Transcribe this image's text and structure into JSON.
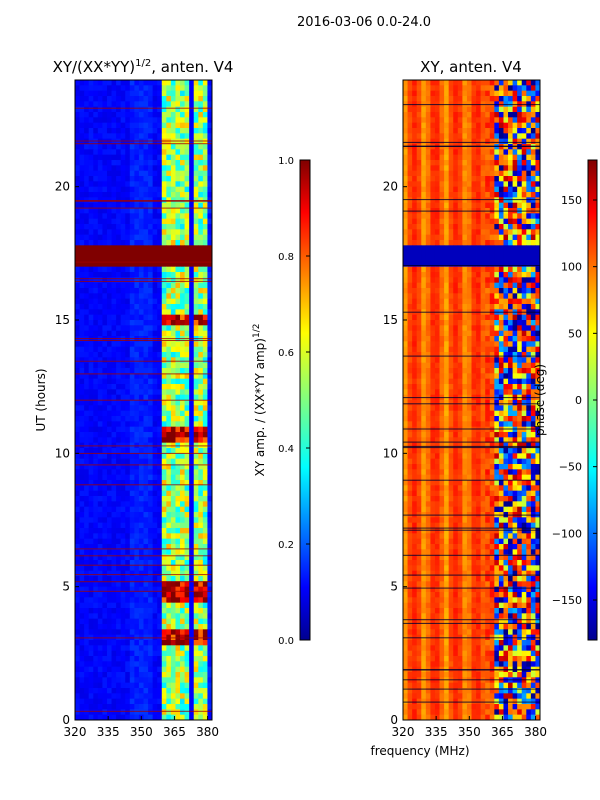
{
  "suptitle": "2016-03-06 0.0-24.0",
  "xlabel_shared": "frequency (MHz)",
  "chart_data": [
    {
      "type": "heatmap",
      "title_main": "XY/(XX*YY)",
      "title_sup": "1/2",
      "title_rest": ", anten. V4",
      "xlabel": "frequency (MHz)",
      "ylabel": "UT (hours)",
      "xlim": [
        320,
        382
      ],
      "ylim": [
        0,
        24
      ],
      "xticks": [
        320,
        335,
        350,
        365,
        380
      ],
      "yticks": [
        0,
        5,
        10,
        15,
        20
      ],
      "colormap": "jet",
      "colorbar": {
        "label_main": "XY amp. / (XX*YY amp)",
        "label_sup": "1/2",
        "range": [
          0.0,
          1.0
        ],
        "ticks": [
          "0.0",
          "0.2",
          "0.4",
          "0.6",
          "0.8",
          "1.0"
        ]
      },
      "saturated_band_hours": [
        17.1,
        17.7
      ],
      "bright_rows_hours": [
        3.0,
        3.2,
        15.0,
        10.7,
        5.0,
        4.7
      ]
    },
    {
      "type": "heatmap",
      "title": "XY, anten. V4",
      "xlabel": "frequency (MHz)",
      "ylabel": "",
      "xlim": [
        320,
        382
      ],
      "ylim": [
        0,
        24
      ],
      "xticks": [
        320,
        335,
        350,
        365,
        380
      ],
      "yticks": [
        0,
        5,
        10,
        15,
        20
      ],
      "colormap": "jet",
      "colorbar": {
        "label": "phase (deg)",
        "range": [
          -180,
          180
        ],
        "ticks": [
          150,
          100,
          50,
          0,
          -50,
          -100,
          -150
        ]
      },
      "saturated_band_hours": [
        17.1,
        17.7
      ]
    }
  ]
}
